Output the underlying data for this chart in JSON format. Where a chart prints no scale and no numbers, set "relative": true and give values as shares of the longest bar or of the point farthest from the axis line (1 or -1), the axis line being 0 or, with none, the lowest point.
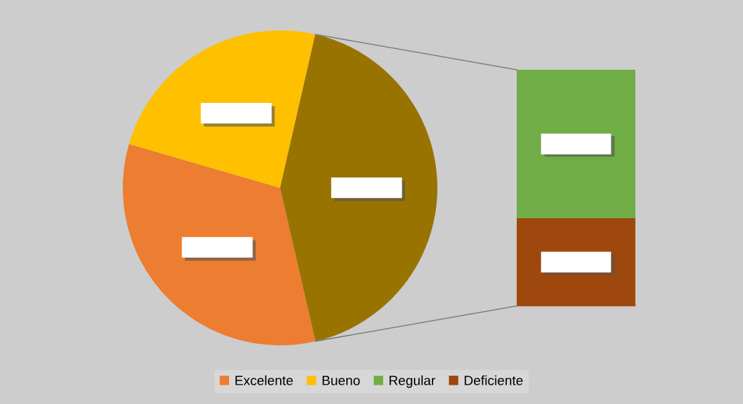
{
  "chart_data": [
    {
      "type": "pie",
      "categories": [
        "Excelente",
        "Bueno",
        null
      ],
      "values": [
        33.1,
        24.1,
        42.8
      ],
      "colors": [
        "#ed7d31",
        "#ffc000",
        "#997300"
      ],
      "legend": "bottom"
    },
    {
      "type": "bar",
      "stacked": true,
      "relative": true,
      "categories": [
        null
      ],
      "legend": "bottom",
      "series": [
        {
          "name": "Deficiente",
          "color": "#9e480e",
          "values": [
            0.371
          ]
        },
        {
          "name": "Regular",
          "color": "#70ad47",
          "values": [
            0.629
          ]
        }
      ]
    }
  ]
}
